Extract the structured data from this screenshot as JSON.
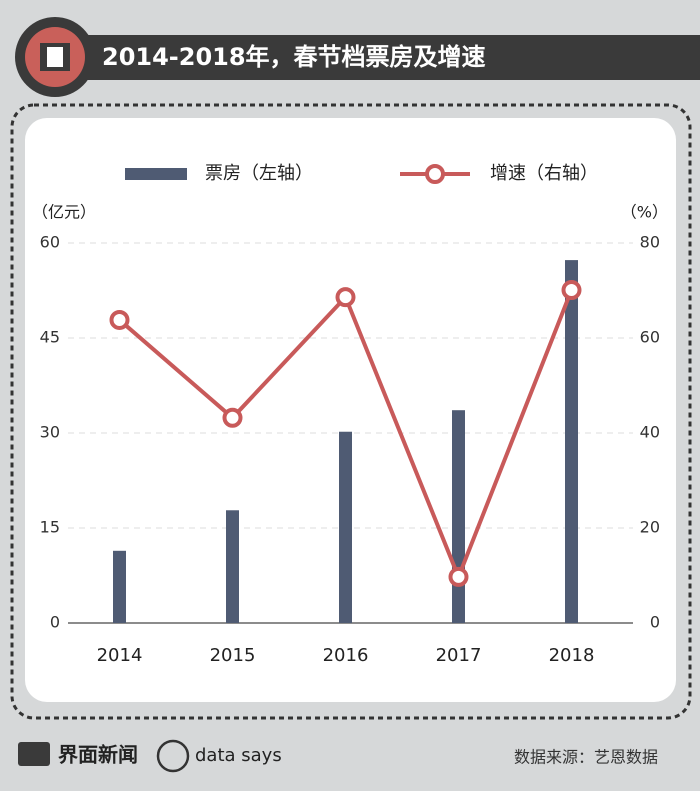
{
  "chart_data": {
    "type": "bar_line",
    "title": "2014-2018年，春节档票房及增速",
    "categories": [
      "2014",
      "2015",
      "2016",
      "2017",
      "2018"
    ],
    "series": [
      {
        "name": "票房（左轴）",
        "color": "#4f5b73",
        "type": "bar",
        "values": [
          11.4,
          17.8,
          30.2,
          33.6,
          57.3
        ]
      },
      {
        "name": "增速（右轴）",
        "color": "#c85a5a",
        "type": "line",
        "axis": "y2",
        "values": [
          63.8,
          43.2,
          68.6,
          9.7,
          70.1
        ]
      }
    ],
    "y_label": "（亿元）",
    "y2_label": "（%）",
    "ylim": [
      0,
      60
    ],
    "yticks": [
      0,
      15,
      30,
      45,
      60
    ],
    "y2lim": [
      0,
      80
    ],
    "y2ticks": [
      0,
      20,
      40,
      60,
      80
    ],
    "grid": true
  },
  "footer": {
    "brand": "界面新闻",
    "brand2": "data says",
    "source": "数据来源：艺恩数据"
  }
}
